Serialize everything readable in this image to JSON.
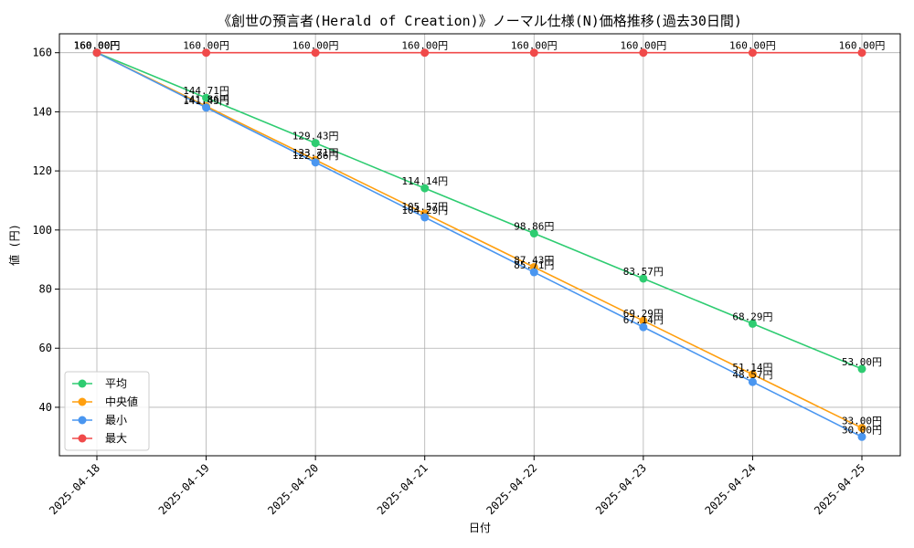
{
  "chart_data": {
    "type": "line",
    "title": "《創世の預言者(Herald of Creation)》ノーマル仕様(N)価格推移(過去30日間)",
    "xlabel": "日付",
    "ylabel": "値 (円)",
    "x": [
      "2025-04-18",
      "2025-04-19",
      "2025-04-20",
      "2025-04-21",
      "2025-04-22",
      "2025-04-23",
      "2025-04-24",
      "2025-04-25"
    ],
    "ylim": [
      23.6,
      166.4
    ],
    "yticks": [
      40,
      60,
      80,
      100,
      120,
      140,
      160
    ],
    "grid": true,
    "legend_position": "lower-left",
    "value_suffix": "円",
    "series": [
      {
        "name": "平均",
        "color": "#2ecc71",
        "values": [
          160.0,
          144.71,
          129.43,
          114.14,
          98.86,
          83.57,
          68.29,
          53.0
        ]
      },
      {
        "name": "中央値",
        "color": "#ff9f0f",
        "values": [
          160.0,
          141.86,
          123.71,
          105.57,
          87.43,
          69.29,
          51.14,
          33.0
        ]
      },
      {
        "name": "最小",
        "color": "#4a96f0",
        "values": [
          160.0,
          141.43,
          122.86,
          104.29,
          85.71,
          67.14,
          48.57,
          30.0
        ]
      },
      {
        "name": "最大",
        "color": "#f04a4a",
        "values": [
          160.0,
          160.0,
          160.0,
          160.0,
          160.0,
          160.0,
          160.0,
          160.0
        ]
      }
    ]
  }
}
